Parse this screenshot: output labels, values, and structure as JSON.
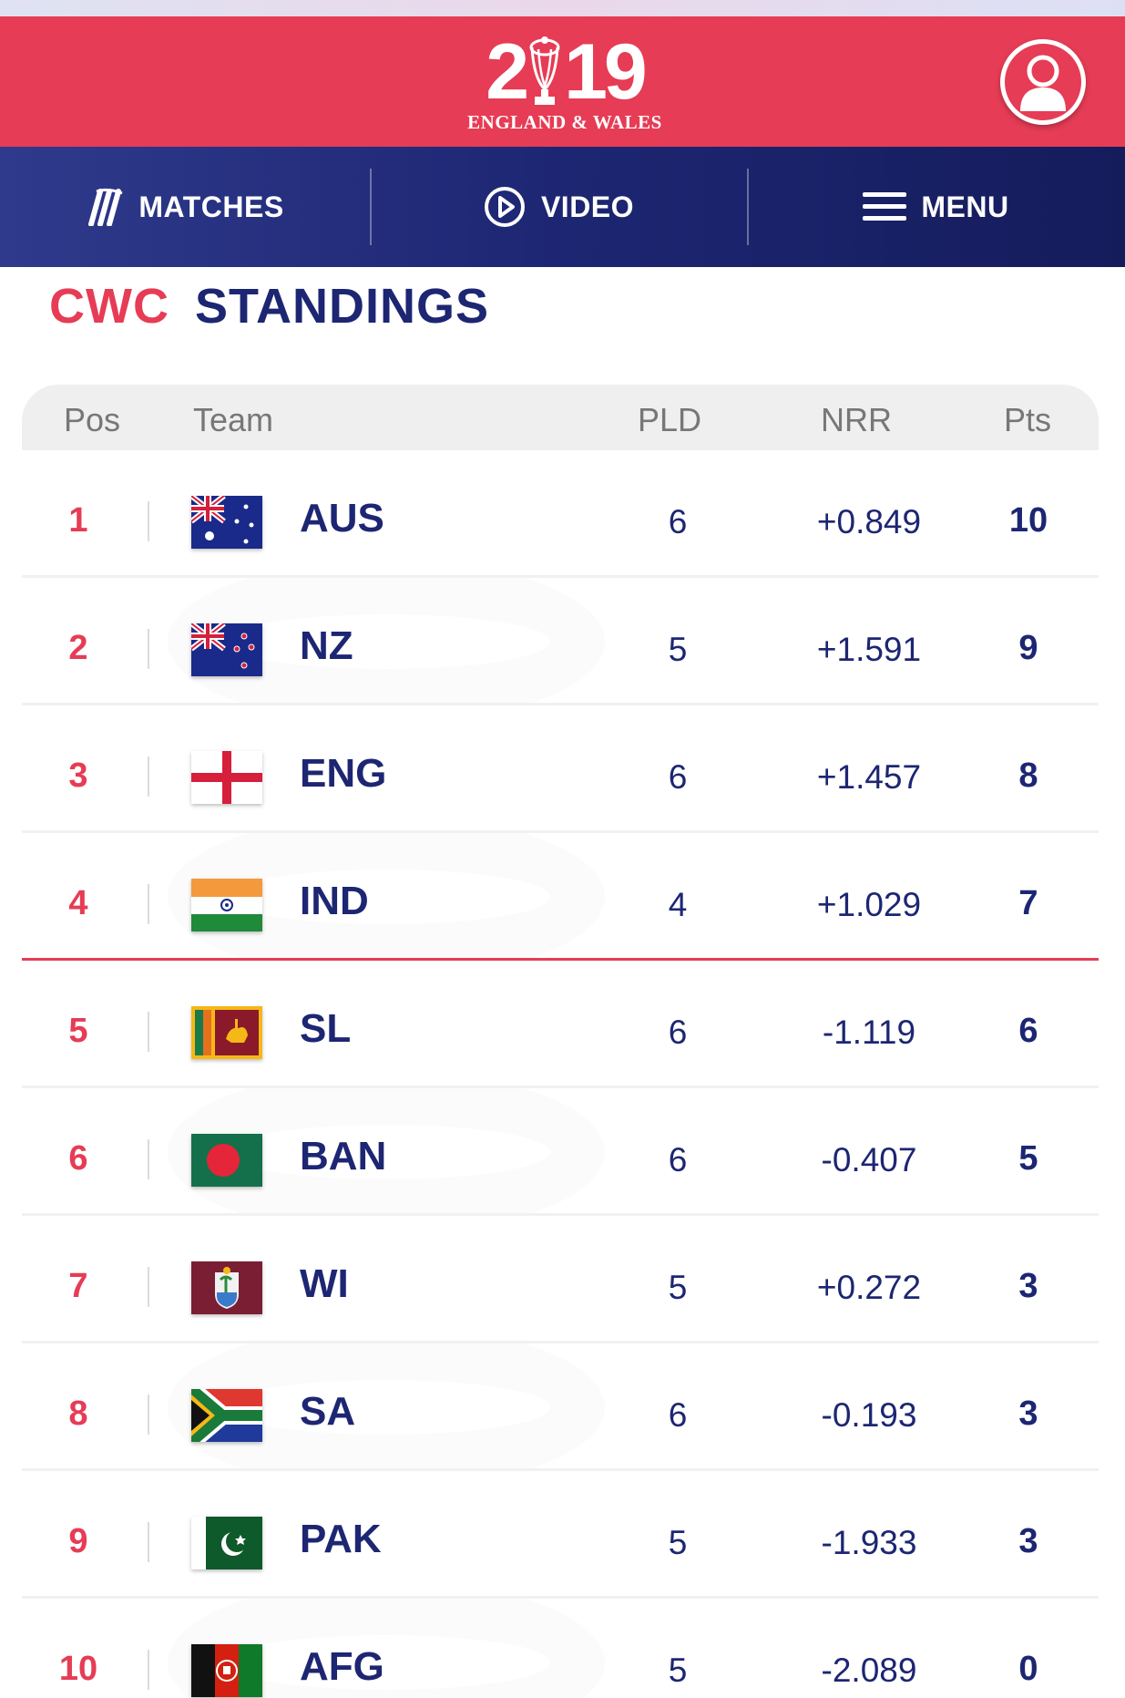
{
  "header": {
    "logo": {
      "year_start": "2",
      "year_end": "19",
      "subtitle": "ENGLAND & WALES"
    },
    "account_icon": "user-icon",
    "background_color": "#e63c55"
  },
  "nav": {
    "items": [
      {
        "label": "MATCHES",
        "icon": "cricket-stumps-icon"
      },
      {
        "label": "VIDEO",
        "icon": "play-circle-icon"
      },
      {
        "label": "MENU",
        "icon": "hamburger-menu-icon"
      }
    ],
    "background_color": "#1d2672"
  },
  "page": {
    "title_accent": "CWC",
    "title_main": "STANDINGS"
  },
  "table": {
    "headers": {
      "pos": "Pos",
      "team": "Team",
      "pld": "PLD",
      "nrr": "NRR",
      "pts": "Pts"
    },
    "rows": [
      {
        "pos": "1",
        "team": "AUS",
        "pld": "6",
        "nrr": "+0.849",
        "pts": "10",
        "flag": "australia-flag"
      },
      {
        "pos": "2",
        "team": "NZ",
        "pld": "5",
        "nrr": "+1.591",
        "pts": "9",
        "flag": "new-zealand-flag"
      },
      {
        "pos": "3",
        "team": "ENG",
        "pld": "6",
        "nrr": "+1.457",
        "pts": "8",
        "flag": "england-flag"
      },
      {
        "pos": "4",
        "team": "IND",
        "pld": "4",
        "nrr": "+1.029",
        "pts": "7",
        "flag": "india-flag"
      },
      {
        "pos": "5",
        "team": "SL",
        "pld": "6",
        "nrr": "-1.119",
        "pts": "6",
        "flag": "sri-lanka-flag"
      },
      {
        "pos": "6",
        "team": "BAN",
        "pld": "6",
        "nrr": "-0.407",
        "pts": "5",
        "flag": "bangladesh-flag"
      },
      {
        "pos": "7",
        "team": "WI",
        "pld": "5",
        "nrr": "+0.272",
        "pts": "3",
        "flag": "west-indies-flag"
      },
      {
        "pos": "8",
        "team": "SA",
        "pld": "6",
        "nrr": "-0.193",
        "pts": "3",
        "flag": "south-africa-flag"
      },
      {
        "pos": "9",
        "team": "PAK",
        "pld": "5",
        "nrr": "-1.933",
        "pts": "3",
        "flag": "pakistan-flag"
      },
      {
        "pos": "10",
        "team": "AFG",
        "pld": "5",
        "nrr": "-2.089",
        "pts": "0",
        "flag": "afghanistan-flag"
      }
    ],
    "accent_color": "#e63c55",
    "text_color": "#1d2672"
  }
}
